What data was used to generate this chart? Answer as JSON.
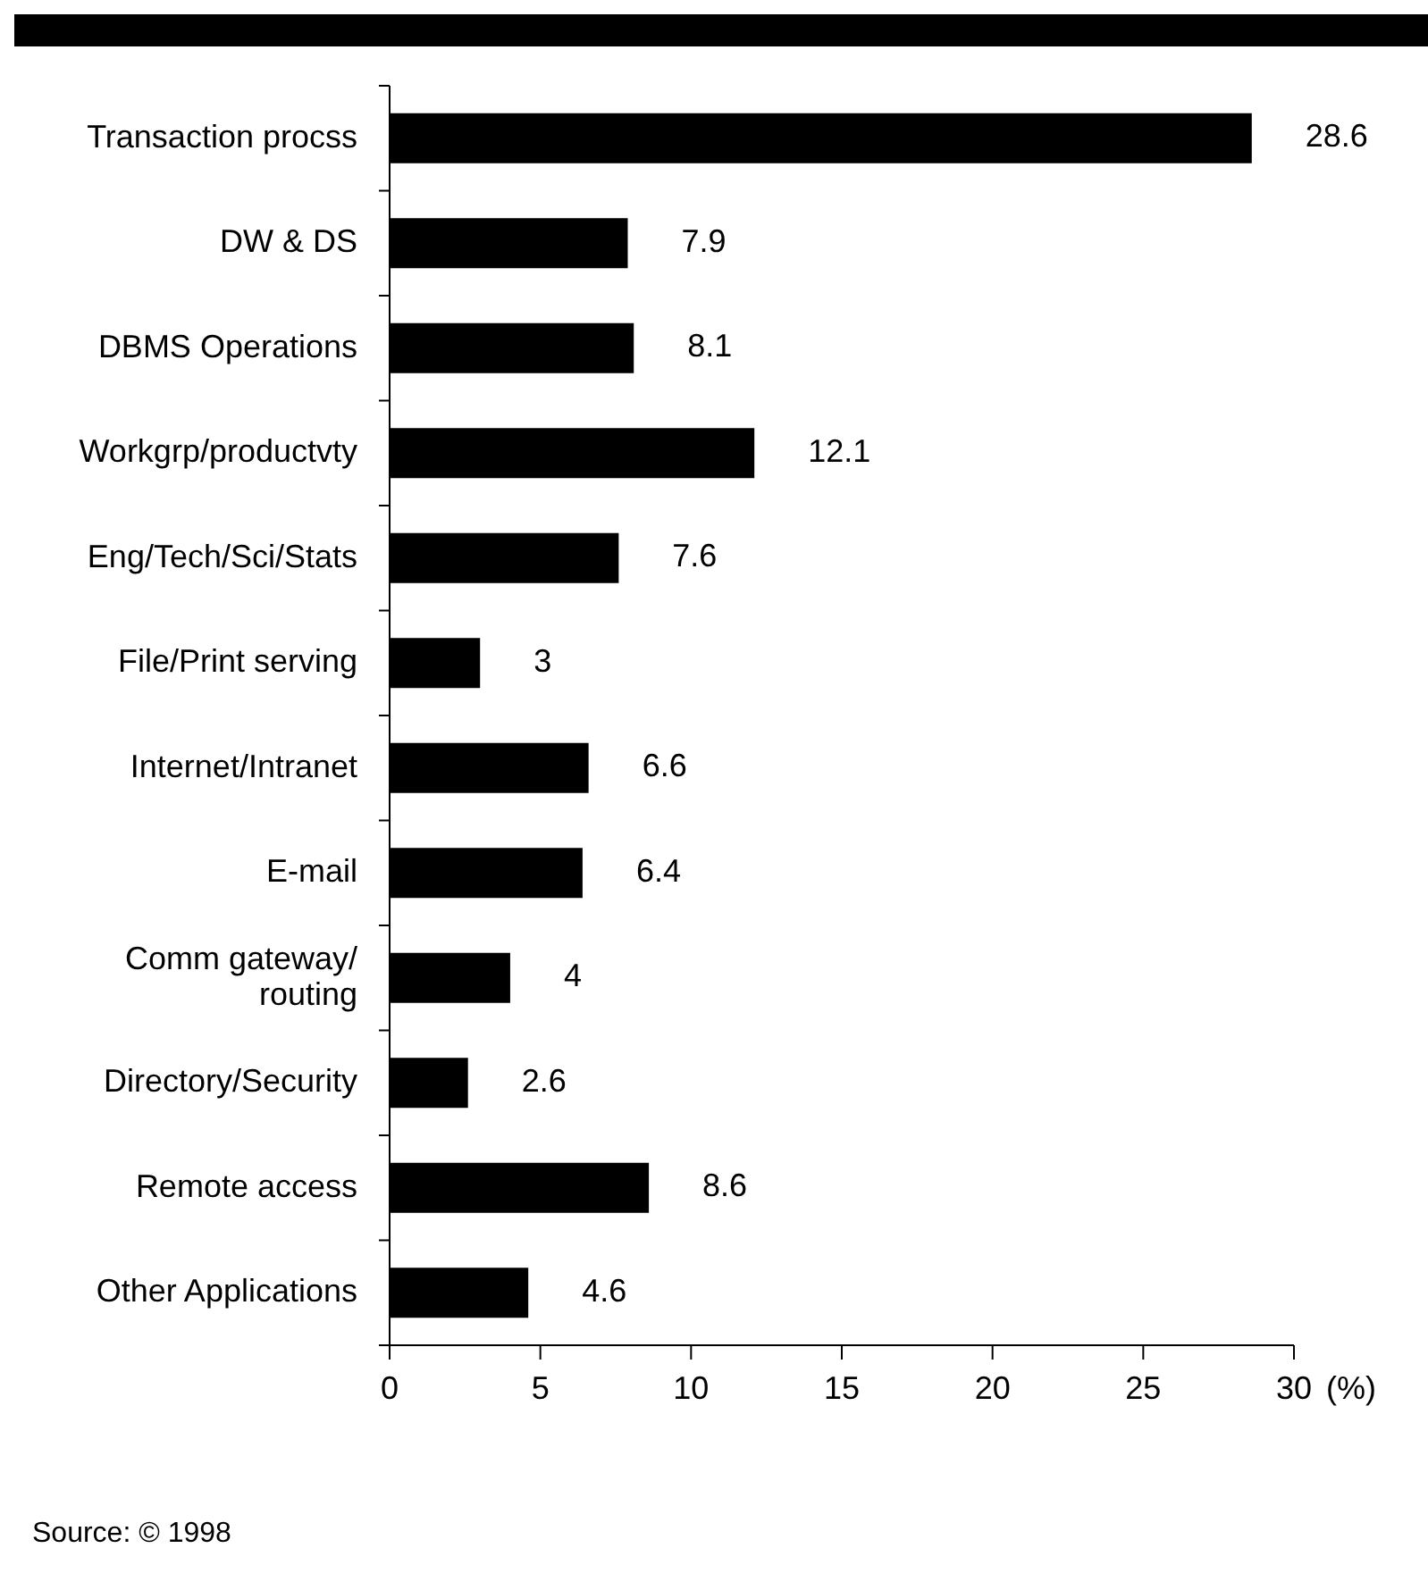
{
  "chart_data": {
    "type": "bar",
    "orientation": "horizontal",
    "categories": [
      "Transaction procss",
      "DW & DS",
      "DBMS Operations",
      "Workgrp/productvty",
      "Eng/Tech/Sci/Stats",
      "File/Print serving",
      "Internet/Intranet",
      "E-mail",
      "Comm gateway/routing",
      "Directory/Security",
      "Remote access",
      "Other Applications"
    ],
    "values": [
      28.6,
      7.9,
      8.1,
      12.1,
      7.6,
      3,
      6.6,
      6.4,
      4,
      2.6,
      8.6,
      4.6
    ],
    "color": "#000000",
    "data_labels": true,
    "xlim": [
      0,
      30
    ],
    "xticks": [
      0,
      5,
      10,
      15,
      20,
      25,
      30
    ],
    "xlabel": "(%)",
    "grid": false,
    "annotations": [
      "Source: © 1998"
    ]
  }
}
